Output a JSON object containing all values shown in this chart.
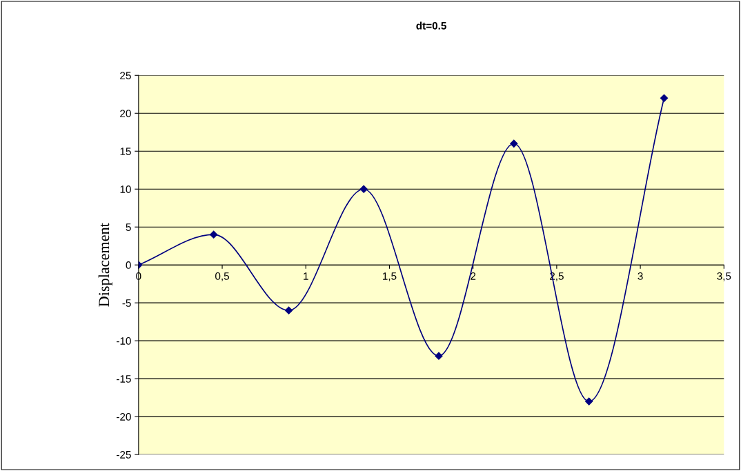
{
  "chart_data": {
    "type": "line",
    "title": "dt=0.5",
    "ylabel": "Displacement",
    "x": [
      0,
      0.449,
      0.898,
      1.346,
      1.795,
      2.244,
      2.693,
      3.142
    ],
    "series": [
      {
        "color": "#000080",
        "values": [
          0,
          4,
          -6,
          10,
          -12,
          16,
          -18,
          22
        ]
      }
    ],
    "xlim": [
      0,
      3.5
    ],
    "xticks": [
      0,
      {
        "value": 0.5,
        "label": "0,5"
      },
      1,
      {
        "value": 1.5,
        "label": "1,5"
      },
      2,
      {
        "value": 2.5,
        "label": "2,5"
      },
      3,
      {
        "value": 3.5,
        "label": "3,5"
      }
    ],
    "ylim": [
      -25,
      25
    ],
    "yticks": [
      -25,
      -20,
      -15,
      -10,
      -5,
      0,
      5,
      10,
      15,
      20,
      25
    ],
    "grid": "y",
    "marker": "diamond",
    "line_style": "solid",
    "legend": false
  }
}
